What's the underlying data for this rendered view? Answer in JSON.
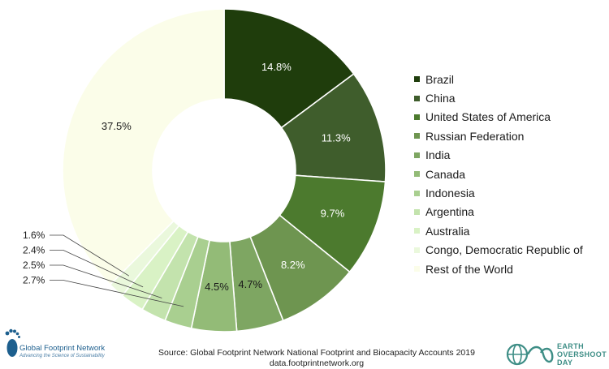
{
  "chart_data": {
    "type": "pie",
    "donut": true,
    "categories": [
      "Brazil",
      "China",
      "United States of America",
      "Russian Federation",
      "India",
      "Canada",
      "Indonesia",
      "Argentina",
      "Australia",
      "Congo, Democratic Republic of",
      "Rest of the World"
    ],
    "values": [
      14.8,
      11.3,
      9.7,
      8.2,
      4.7,
      4.5,
      2.7,
      2.5,
      2.4,
      1.6,
      37.5
    ],
    "data_labels": [
      "14.8%",
      "11.3%",
      "9.7%",
      "8.2%",
      "4.7%",
      "4.5%",
      "2.7%",
      "2.5%",
      "2.4%",
      "1.6%",
      "37.5%"
    ],
    "colors": [
      "#1f3d0c",
      "#3f5d2c",
      "#4c7a2e",
      "#6e9550",
      "#7ea662",
      "#93bb77",
      "#a9cf90",
      "#c3e3ad",
      "#d9f2c5",
      "#eaf8dc",
      "#fbfde9"
    ],
    "legend_position": "right"
  },
  "source": {
    "line1": "Source: Global Footprint Network National Footprint and Biocapacity Accounts 2019",
    "line2": "data.footprintnetwork.org"
  },
  "logos": {
    "gfn_name": "Global Footprint Network",
    "gfn_tagline": "Advancing the Science of Sustainability",
    "eod_line1": "EARTH",
    "eod_line2": "OVERSHOOT",
    "eod_line3": "DAY"
  },
  "colors": {
    "gfn_blue": "#1d5f8e",
    "eod_teal": "#3e8e86"
  }
}
